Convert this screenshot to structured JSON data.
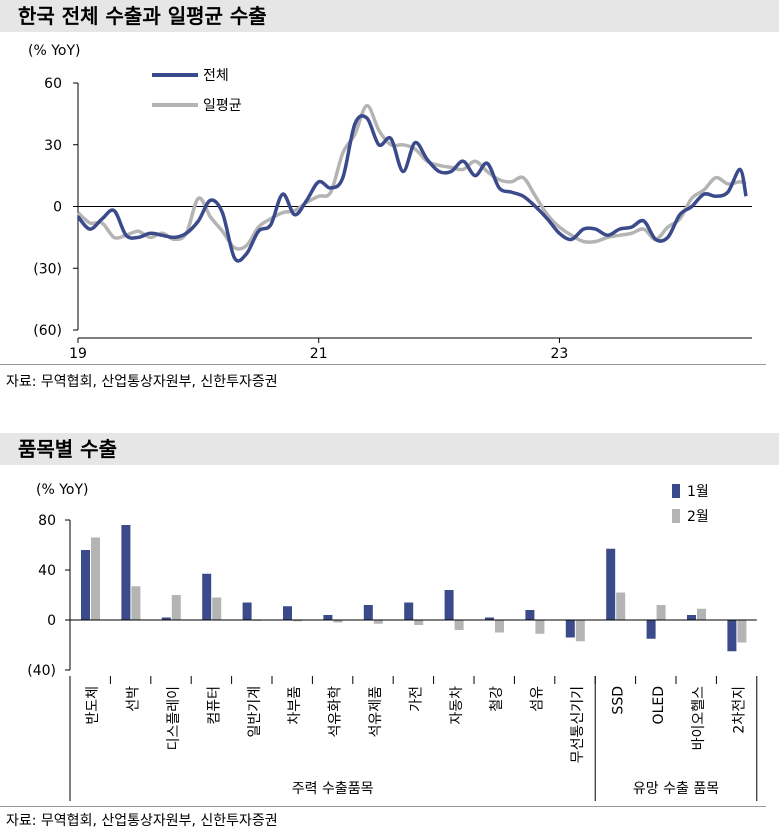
{
  "chart_data": [
    {
      "type": "line",
      "title": "한국 전체 수출과 일평균 수출",
      "unit_label": "(% YoY)",
      "y_ticks": [
        60,
        30,
        0,
        -30,
        -60
      ],
      "y_tick_labels": [
        "60",
        "30",
        "0",
        "(30)",
        "(60)"
      ],
      "ylim": [
        -60,
        60
      ],
      "xlim": [
        2019,
        2024.6
      ],
      "x_ticks": [
        2019,
        2021,
        2023
      ],
      "x_tick_labels": [
        "19",
        "21",
        "23"
      ],
      "legend_position": "top-left",
      "series": [
        {
          "name": "전체",
          "color": "#3b4a8a",
          "x": [
            2019.0,
            2019.1,
            2019.2,
            2019.3,
            2019.4,
            2019.5,
            2019.6,
            2019.7,
            2019.8,
            2019.9,
            2020.0,
            2020.1,
            2020.2,
            2020.3,
            2020.4,
            2020.5,
            2020.6,
            2020.7,
            2020.8,
            2020.9,
            2021.0,
            2021.1,
            2021.2,
            2021.3,
            2021.4,
            2021.5,
            2021.6,
            2021.7,
            2021.8,
            2021.9,
            2022.0,
            2022.1,
            2022.2,
            2022.3,
            2022.4,
            2022.5,
            2022.6,
            2022.7,
            2022.8,
            2022.9,
            2023.0,
            2023.1,
            2023.2,
            2023.3,
            2023.4,
            2023.5,
            2023.6,
            2023.7,
            2023.8,
            2023.9,
            2024.0,
            2024.1,
            2024.2,
            2024.3,
            2024.4,
            2024.5,
            2024.55
          ],
          "values": [
            -5,
            -11,
            -6,
            -2,
            -14,
            -15,
            -13,
            -14,
            -15,
            -13,
            -7,
            3,
            -3,
            -25,
            -23,
            -12,
            -9,
            6,
            -4,
            3,
            12,
            9,
            14,
            40,
            43,
            30,
            33,
            17,
            31,
            23,
            17,
            17,
            22,
            15,
            21,
            9,
            7,
            5,
            0,
            -6,
            -13,
            -16,
            -11,
            -11,
            -14,
            -11,
            -10,
            -7,
            -16,
            -15,
            -4,
            0,
            6,
            5,
            7,
            18,
            5
          ]
        },
        {
          "name": "일평균",
          "color": "#b4b4b4",
          "x": [
            2019.0,
            2019.1,
            2019.2,
            2019.3,
            2019.4,
            2019.5,
            2019.6,
            2019.7,
            2019.8,
            2019.9,
            2020.0,
            2020.1,
            2020.2,
            2020.3,
            2020.4,
            2020.5,
            2020.6,
            2020.7,
            2020.8,
            2020.9,
            2021.0,
            2021.1,
            2021.2,
            2021.3,
            2021.4,
            2021.5,
            2021.6,
            2021.7,
            2021.8,
            2021.9,
            2022.0,
            2022.1,
            2022.2,
            2022.3,
            2022.4,
            2022.5,
            2022.6,
            2022.7,
            2022.8,
            2022.9,
            2023.0,
            2023.1,
            2023.2,
            2023.3,
            2023.4,
            2023.5,
            2023.6,
            2023.7,
            2023.8,
            2023.9,
            2024.0,
            2024.1,
            2024.2,
            2024.3,
            2024.4,
            2024.5,
            2024.55
          ],
          "values": [
            -3,
            -8,
            -8,
            -15,
            -14,
            -12,
            -15,
            -13,
            -16,
            -13,
            4,
            -5,
            -12,
            -20,
            -19,
            -10,
            -6,
            -3,
            -2,
            2,
            5,
            7,
            26,
            35,
            49,
            37,
            30,
            30,
            28,
            22,
            20,
            19,
            18,
            22,
            17,
            13,
            12,
            14,
            5,
            -4,
            -10,
            -14,
            -17,
            -17,
            -15,
            -14,
            -13,
            -11,
            -16,
            -10,
            -6,
            4,
            8,
            14,
            11,
            12,
            11
          ]
        }
      ]
    },
    {
      "type": "bar",
      "title": "품목별 수출",
      "unit_label": "(% YoY)",
      "y_ticks": [
        80,
        40,
        0,
        -40
      ],
      "y_tick_labels": [
        "80",
        "40",
        "0",
        "(40)"
      ],
      "ylim": [
        -40,
        80
      ],
      "legend_position": "top-right",
      "categories": [
        "반도체",
        "선박",
        "디스플레이",
        "컴퓨터",
        "일반기계",
        "차부품",
        "석유화학",
        "석유제품",
        "가전",
        "자동차",
        "철강",
        "섬유",
        "무선통신기기",
        "SSD",
        "OLED",
        "바이오헬스",
        "2차전지"
      ],
      "groups": [
        {
          "label": "주력 수출품목",
          "count": 13
        },
        {
          "label": "유망 수출 품목",
          "count": 4
        }
      ],
      "series": [
        {
          "name": "1월",
          "color": "#3b4a8a",
          "values": [
            56,
            76,
            2,
            37,
            14,
            11,
            4,
            12,
            14,
            24,
            2,
            8,
            -14,
            57,
            -15,
            4,
            -25
          ]
        },
        {
          "name": "2월",
          "color": "#b4b4b4",
          "values": [
            66,
            27,
            20,
            18,
            0,
            -1,
            -2,
            -3,
            -4,
            -8,
            -10,
            -11,
            -17,
            22,
            12,
            9,
            -18
          ]
        }
      ]
    }
  ],
  "source": "자료: 무역협회, 산업통상자원부, 신한투자증권"
}
